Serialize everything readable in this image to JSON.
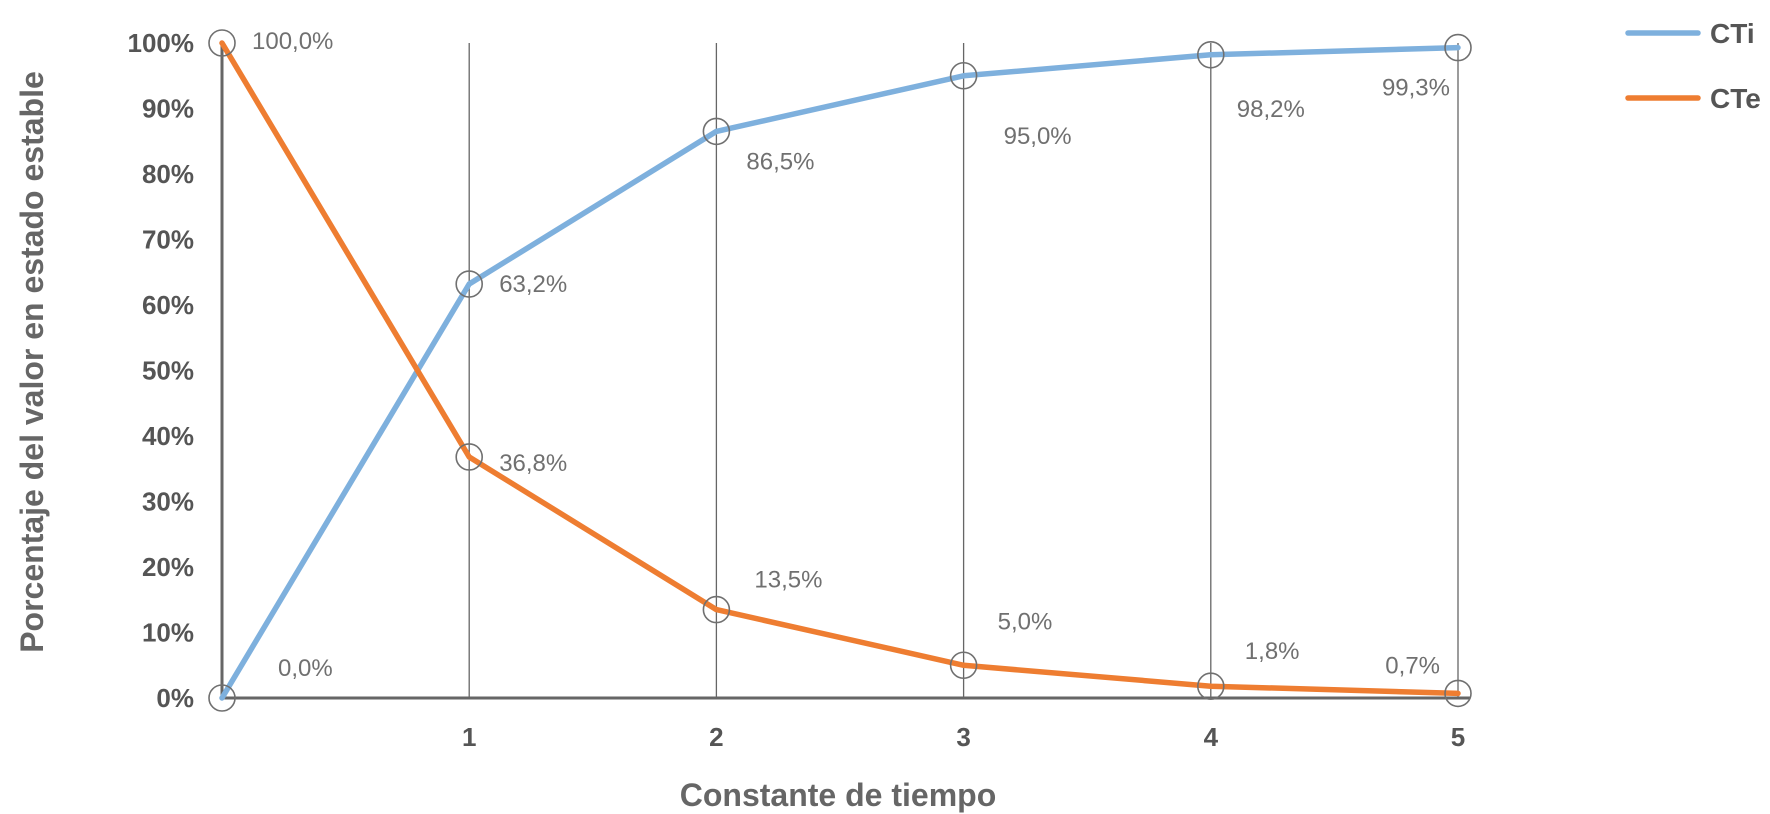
{
  "chart_data": {
    "type": "line",
    "title": "",
    "xlabel": "Constante de tiempo",
    "ylabel": "Porcentaje del valor en estado estable",
    "x": [
      0,
      1,
      2,
      3,
      4,
      5
    ],
    "x_tick_labels": [
      "1",
      "2",
      "3",
      "4",
      "5"
    ],
    "x_tick_values": [
      1,
      2,
      3,
      4,
      5
    ],
    "xlim": [
      0,
      5
    ],
    "y_tick_labels": [
      "0%",
      "10%",
      "20%",
      "30%",
      "40%",
      "50%",
      "60%",
      "70%",
      "80%",
      "90%",
      "100%"
    ],
    "ylim": [
      0,
      100
    ],
    "grid": "vertical",
    "legend_position": "top-right",
    "series": [
      {
        "name": "CTi",
        "color": "#7EB0DD",
        "values": [
          0.0,
          63.2,
          86.5,
          95.0,
          98.2,
          99.3
        ],
        "labels": [
          "0,0%",
          "63,2%",
          "86,5%",
          "95,0%",
          "98,2%",
          "99,3%"
        ]
      },
      {
        "name": "CTe",
        "color": "#EE7D31",
        "values": [
          100.0,
          36.8,
          13.5,
          5.0,
          1.8,
          0.7
        ],
        "labels": [
          "100,0%",
          "36,8%",
          "13,5%",
          "5,0%",
          "1,8%",
          "0,7%"
        ]
      }
    ]
  }
}
